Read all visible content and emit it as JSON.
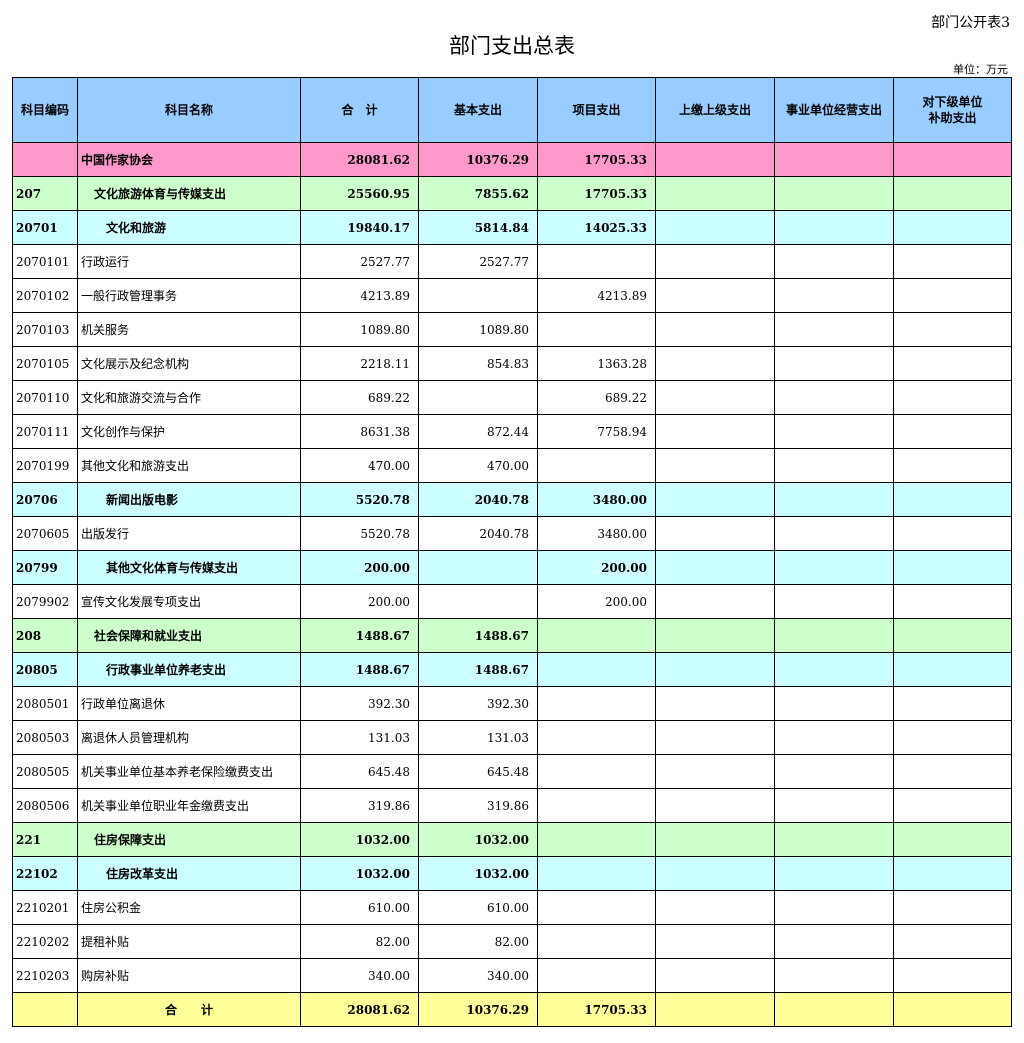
{
  "corner_label": "部门公开表3",
  "title": "部门支出总表",
  "unit": "单位：万元",
  "colors": {
    "header": "#99ccff",
    "top": "#ff99cc",
    "category": "#ccffcc",
    "section": "#ccffff",
    "total": "#ffff99"
  },
  "columns": [
    "科目编码",
    "科目名称",
    "合　计",
    "基本支出",
    "项目支出",
    "上缴上级支出",
    "事业单位经营支出",
    "对下级单位\n补助支出"
  ],
  "rows": [
    {
      "type": "top",
      "code": "",
      "name": "中国作家协会",
      "total": "28081.62",
      "basic": "10376.29",
      "project": "17705.33"
    },
    {
      "type": "cat",
      "code": "207",
      "name": "文化旅游体育与传媒支出",
      "total": "25560.95",
      "basic": "7855.62",
      "project": "17705.33"
    },
    {
      "type": "sec",
      "code": "20701",
      "name": "文化和旅游",
      "total": "19840.17",
      "basic": "5814.84",
      "project": "14025.33"
    },
    {
      "type": "item",
      "code": "2070101",
      "name": "行政运行",
      "total": "2527.77",
      "basic": "2527.77",
      "project": ""
    },
    {
      "type": "item",
      "code": "2070102",
      "name": "一般行政管理事务",
      "total": "4213.89",
      "basic": "",
      "project": "4213.89"
    },
    {
      "type": "item",
      "code": "2070103",
      "name": "机关服务",
      "total": "1089.80",
      "basic": "1089.80",
      "project": ""
    },
    {
      "type": "item",
      "code": "2070105",
      "name": "文化展示及纪念机构",
      "total": "2218.11",
      "basic": "854.83",
      "project": "1363.28"
    },
    {
      "type": "item",
      "code": "2070110",
      "name": "文化和旅游交流与合作",
      "total": "689.22",
      "basic": "",
      "project": "689.22"
    },
    {
      "type": "item",
      "code": "2070111",
      "name": "文化创作与保护",
      "total": "8631.38",
      "basic": "872.44",
      "project": "7758.94"
    },
    {
      "type": "item",
      "code": "2070199",
      "name": "其他文化和旅游支出",
      "total": "470.00",
      "basic": "470.00",
      "project": ""
    },
    {
      "type": "sec",
      "code": "20706",
      "name": "新闻出版电影",
      "total": "5520.78",
      "basic": "2040.78",
      "project": "3480.00"
    },
    {
      "type": "item",
      "code": "2070605",
      "name": "出版发行",
      "total": "5520.78",
      "basic": "2040.78",
      "project": "3480.00"
    },
    {
      "type": "sec",
      "code": "20799",
      "name": "其他文化体育与传媒支出",
      "total": "200.00",
      "basic": "",
      "project": "200.00"
    },
    {
      "type": "item",
      "code": "2079902",
      "name": "宣传文化发展专项支出",
      "total": "200.00",
      "basic": "",
      "project": "200.00"
    },
    {
      "type": "cat",
      "code": "208",
      "name": "社会保障和就业支出",
      "total": "1488.67",
      "basic": "1488.67",
      "project": ""
    },
    {
      "type": "sec",
      "code": "20805",
      "name": "行政事业单位养老支出",
      "total": "1488.67",
      "basic": "1488.67",
      "project": ""
    },
    {
      "type": "item",
      "code": "2080501",
      "name": "行政单位离退休",
      "total": "392.30",
      "basic": "392.30",
      "project": ""
    },
    {
      "type": "item",
      "code": "2080503",
      "name": "离退休人员管理机构",
      "total": "131.03",
      "basic": "131.03",
      "project": ""
    },
    {
      "type": "item",
      "code": "2080505",
      "name": "机关事业单位基本养老保险缴费支出",
      "total": "645.48",
      "basic": "645.48",
      "project": ""
    },
    {
      "type": "item",
      "code": "2080506",
      "name": "机关事业单位职业年金缴费支出",
      "total": "319.86",
      "basic": "319.86",
      "project": ""
    },
    {
      "type": "cat",
      "code": "221",
      "name": "住房保障支出",
      "total": "1032.00",
      "basic": "1032.00",
      "project": ""
    },
    {
      "type": "sec",
      "code": "22102",
      "name": "住房改革支出",
      "total": "1032.00",
      "basic": "1032.00",
      "project": ""
    },
    {
      "type": "item",
      "code": "2210201",
      "name": "住房公积金",
      "total": "610.00",
      "basic": "610.00",
      "project": ""
    },
    {
      "type": "item",
      "code": "2210202",
      "name": "提租补贴",
      "total": "82.00",
      "basic": "82.00",
      "project": ""
    },
    {
      "type": "item",
      "code": "2210203",
      "name": "购房补贴",
      "total": "340.00",
      "basic": "340.00",
      "project": ""
    },
    {
      "type": "total",
      "code": "",
      "name": "合　　计",
      "total": "28081.62",
      "basic": "10376.29",
      "project": "17705.33"
    }
  ]
}
